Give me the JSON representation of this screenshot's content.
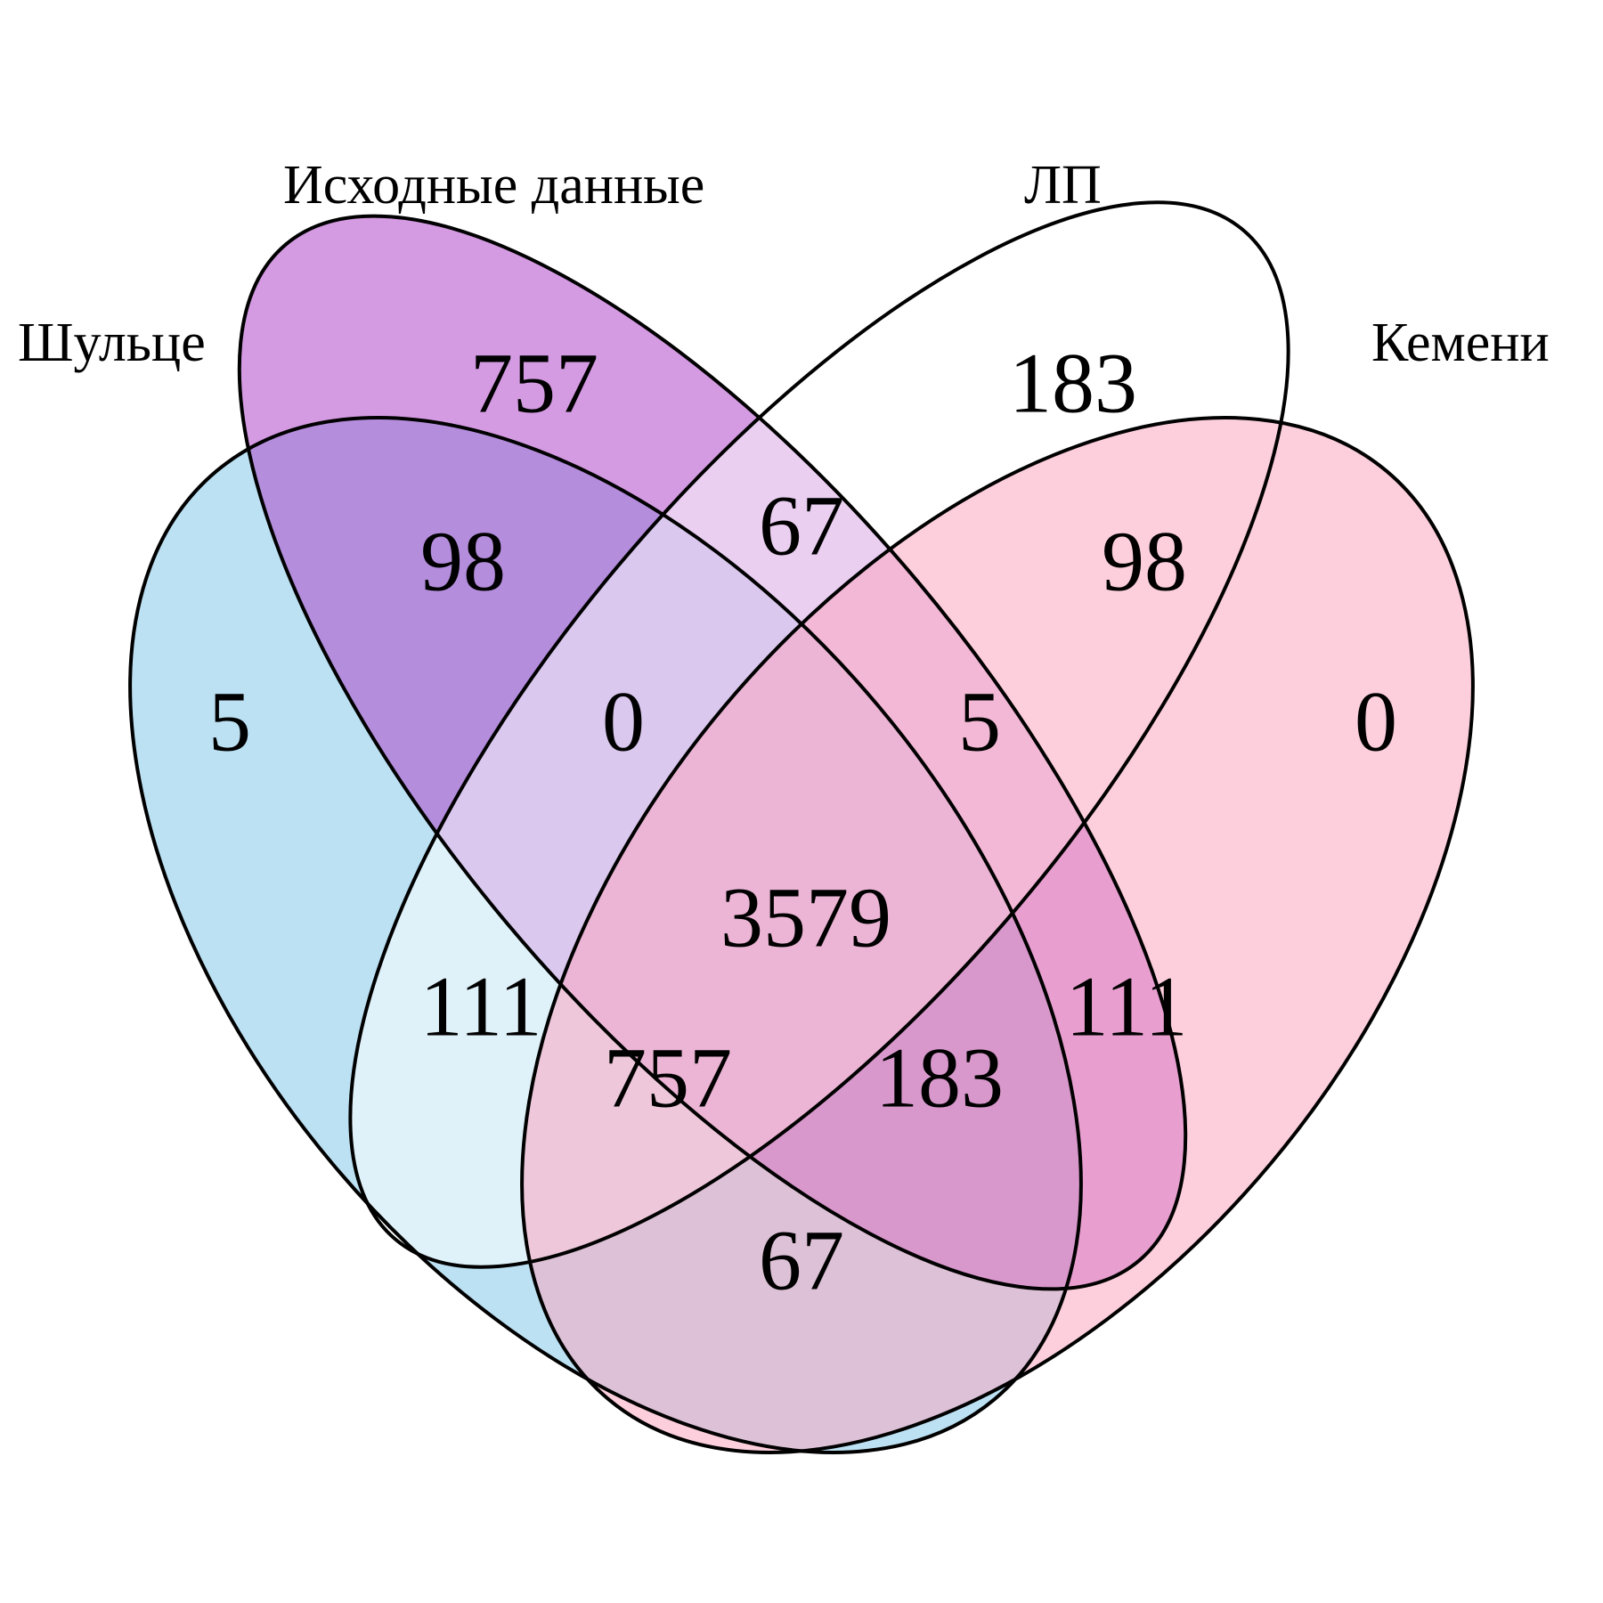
{
  "sets": [
    {
      "id": "schulze",
      "name": "Шульце",
      "color": "#7ec6e8"
    },
    {
      "id": "source",
      "name": "Исходные данные",
      "color": "#ad3fc7"
    },
    {
      "id": "lp",
      "name": "ЛП",
      "color": "#ffffff"
    },
    {
      "id": "kemeny",
      "name": "Кемени",
      "color": "#fba3bd"
    }
  ],
  "regions": [
    {
      "sets": [
        "schulze"
      ],
      "count": "5"
    },
    {
      "sets": [
        "source"
      ],
      "count": "757"
    },
    {
      "sets": [
        "lp"
      ],
      "count": "183"
    },
    {
      "sets": [
        "kemeny"
      ],
      "count": "0"
    },
    {
      "sets": [
        "schulze",
        "source"
      ],
      "count": "98"
    },
    {
      "sets": [
        "source",
        "lp"
      ],
      "count": "67"
    },
    {
      "sets": [
        "lp",
        "kemeny"
      ],
      "count": "98"
    },
    {
      "sets": [
        "schulze",
        "source",
        "lp"
      ],
      "count": "0"
    },
    {
      "sets": [
        "source",
        "lp",
        "kemeny"
      ],
      "count": "5"
    },
    {
      "sets": [
        "schulze",
        "source",
        "lp",
        "kemeny"
      ],
      "count": "3579"
    },
    {
      "sets": [
        "schulze",
        "lp"
      ],
      "count": "111"
    },
    {
      "sets": [
        "source",
        "kemeny"
      ],
      "count": "111"
    },
    {
      "sets": [
        "schulze",
        "lp",
        "kemeny"
      ],
      "count": "757"
    },
    {
      "sets": [
        "schulze",
        "source",
        "kemeny"
      ],
      "count": "183"
    },
    {
      "sets": [
        "schulze",
        "kemeny"
      ],
      "count": "67"
    }
  ]
}
